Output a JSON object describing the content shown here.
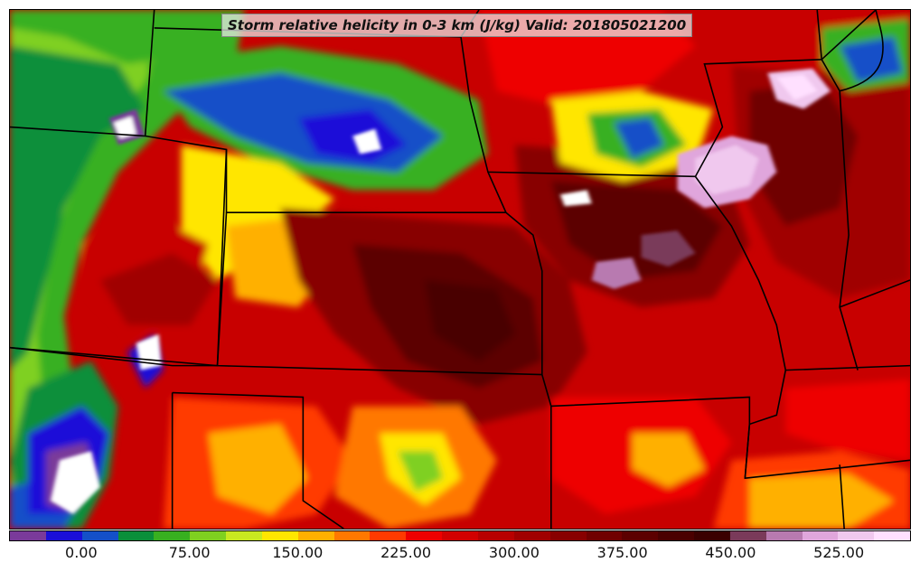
{
  "title": "Storm relative helicity in 0-3 km (J/kg) Valid: 201805021200",
  "colorbar": {
    "min": -50,
    "max": 575,
    "step": 25,
    "colors": [
      "#7a3a9a",
      "#1a0fd8",
      "#1450c8",
      "#0a8f3a",
      "#38b020",
      "#7fd020",
      "#c8e820",
      "#ffe600",
      "#ffb000",
      "#ff7800",
      "#ff3a00",
      "#ee0000",
      "#d20000",
      "#b80000",
      "#a00000",
      "#880000",
      "#700000",
      "#5c0000",
      "#4a0000",
      "#3a0000",
      "#7a3a5a",
      "#b87ab0",
      "#e0a6dc",
      "#f0c8ee",
      "#ffe0ff"
    ],
    "tick_labels": [
      {
        "value": 0,
        "label": "0.00"
      },
      {
        "value": 75,
        "label": "75.00"
      },
      {
        "value": 150,
        "label": "150.00"
      },
      {
        "value": 225,
        "label": "225.00"
      },
      {
        "value": 300,
        "label": "300.00"
      },
      {
        "value": 375,
        "label": "375.00"
      },
      {
        "value": 450,
        "label": "450.00"
      },
      {
        "value": 525,
        "label": "525.00"
      }
    ]
  }
}
